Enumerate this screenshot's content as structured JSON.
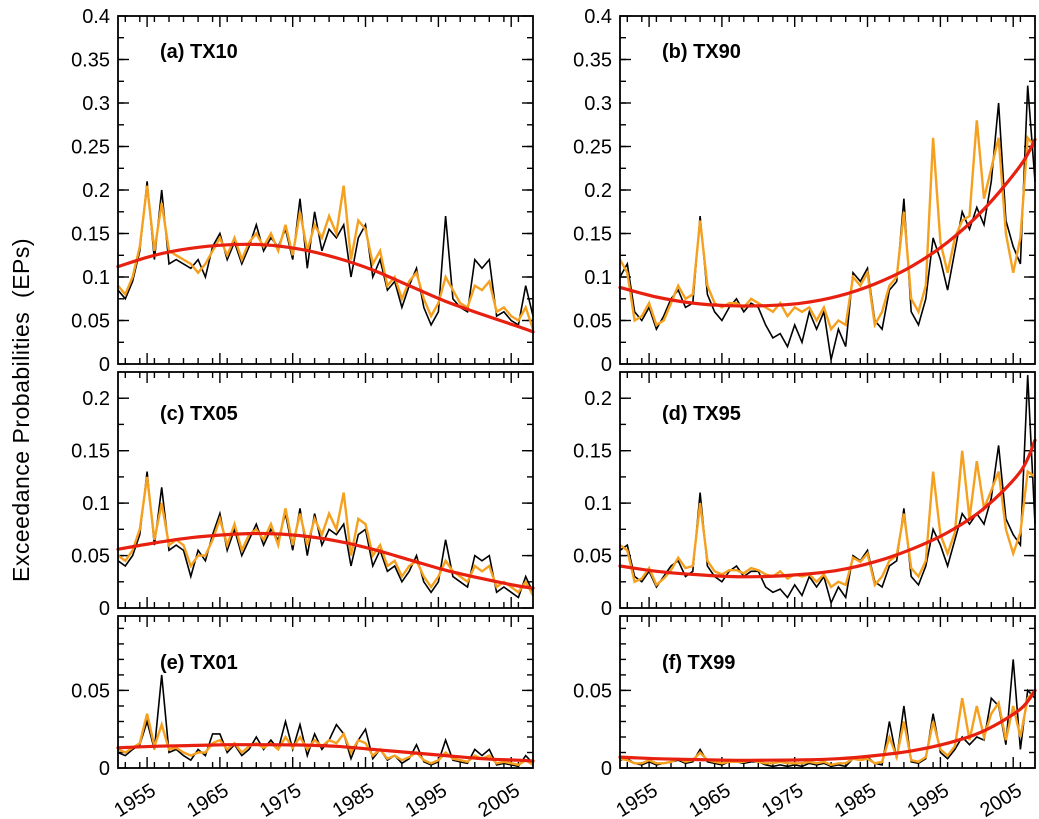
{
  "chart_data": {
    "type": "line",
    "title": "",
    "ylabel": "Exceedance Probabilities  (EPs)",
    "grid": false,
    "legend": "none",
    "x": {
      "start": 1951,
      "end": 2008,
      "minor_step": 2,
      "majors": [
        {
          "value": 1955,
          "label": "1955"
        },
        {
          "value": 1965,
          "label": "1965"
        },
        {
          "value": 1975,
          "label": "1975"
        },
        {
          "value": 1985,
          "label": "1985"
        },
        {
          "value": 1995,
          "label": "1995"
        },
        {
          "value": 2005,
          "label": "2005"
        }
      ]
    },
    "rows": [
      {
        "ylim": [
          0,
          0.4
        ],
        "minor_step": 0.025,
        "ticks": [
          {
            "value": 0,
            "label": "0"
          },
          {
            "value": 0.05,
            "label": "0.05"
          },
          {
            "value": 0.1,
            "label": "0.1"
          },
          {
            "value": 0.15,
            "label": "0.15"
          },
          {
            "value": 0.2,
            "label": "0.2"
          },
          {
            "value": 0.25,
            "label": "0.25"
          },
          {
            "value": 0.3,
            "label": "0.3"
          },
          {
            "value": 0.35,
            "label": "0.35"
          },
          {
            "value": 0.4,
            "label": "0.4"
          }
        ]
      },
      {
        "ylim": [
          0,
          0.225
        ],
        "minor_step": 0.025,
        "ticks": [
          {
            "value": 0,
            "label": "0"
          },
          {
            "value": 0.05,
            "label": "0.05"
          },
          {
            "value": 0.1,
            "label": "0.1"
          },
          {
            "value": 0.15,
            "label": "0.15"
          },
          {
            "value": 0.2,
            "label": "0.2"
          }
        ]
      },
      {
        "ylim": [
          0,
          0.098
        ],
        "minor_step": 0.01,
        "ticks": [
          {
            "value": 0,
            "label": "0"
          },
          {
            "value": 0.05,
            "label": "0.05"
          }
        ]
      }
    ],
    "colors": {
      "black_series": "#000000",
      "orange_series": "#F5A01E",
      "red_trend": "#E8200F",
      "frame": "#000000"
    },
    "trend_years": [
      1951,
      1956,
      1961,
      1966,
      1971,
      1976,
      1981,
      1986,
      1991,
      1996,
      2001,
      2006,
      2008
    ],
    "panels": [
      {
        "id": "a",
        "label": "(a)  TX10",
        "row": 0,
        "col": 0,
        "black": [
          0.085,
          0.075,
          0.095,
          0.13,
          0.21,
          0.12,
          0.2,
          0.115,
          0.12,
          0.115,
          0.11,
          0.12,
          0.1,
          0.135,
          0.15,
          0.12,
          0.14,
          0.115,
          0.135,
          0.16,
          0.13,
          0.145,
          0.135,
          0.155,
          0.12,
          0.19,
          0.11,
          0.175,
          0.13,
          0.155,
          0.145,
          0.16,
          0.1,
          0.145,
          0.16,
          0.1,
          0.12,
          0.085,
          0.095,
          0.065,
          0.09,
          0.11,
          0.065,
          0.045,
          0.06,
          0.17,
          0.075,
          0.065,
          0.06,
          0.12,
          0.11,
          0.12,
          0.055,
          0.06,
          0.05,
          0.045,
          0.09,
          0.055
        ],
        "orange": [
          0.09,
          0.08,
          0.1,
          0.135,
          0.205,
          0.13,
          0.185,
          0.13,
          0.125,
          0.12,
          0.115,
          0.105,
          0.115,
          0.13,
          0.145,
          0.125,
          0.145,
          0.12,
          0.14,
          0.15,
          0.135,
          0.15,
          0.13,
          0.16,
          0.125,
          0.175,
          0.13,
          0.16,
          0.145,
          0.17,
          0.15,
          0.205,
          0.12,
          0.165,
          0.155,
          0.115,
          0.13,
          0.09,
          0.1,
          0.075,
          0.095,
          0.105,
          0.075,
          0.055,
          0.07,
          0.1,
          0.085,
          0.07,
          0.065,
          0.09,
          0.085,
          0.095,
          0.06,
          0.065,
          0.055,
          0.05,
          0.065,
          0.04
        ],
        "trend": [
          0.112,
          0.125,
          0.133,
          0.137,
          0.137,
          0.132,
          0.122,
          0.108,
          0.09,
          0.072,
          0.057,
          0.043,
          0.037
        ]
      },
      {
        "id": "b",
        "label": "(b)  TX90",
        "row": 0,
        "col": 1,
        "black": [
          0.1,
          0.115,
          0.06,
          0.05,
          0.065,
          0.04,
          0.055,
          0.075,
          0.085,
          0.065,
          0.07,
          0.17,
          0.08,
          0.06,
          0.05,
          0.065,
          0.075,
          0.06,
          0.07,
          0.065,
          0.045,
          0.03,
          0.035,
          0.02,
          0.045,
          0.025,
          0.06,
          0.04,
          0.06,
          0.005,
          0.04,
          0.02,
          0.105,
          0.095,
          0.11,
          0.05,
          0.04,
          0.085,
          0.095,
          0.19,
          0.06,
          0.045,
          0.075,
          0.145,
          0.12,
          0.085,
          0.13,
          0.175,
          0.155,
          0.18,
          0.16,
          0.21,
          0.3,
          0.165,
          0.135,
          0.115,
          0.32,
          0.21
        ],
        "orange": [
          0.12,
          0.105,
          0.05,
          0.055,
          0.07,
          0.045,
          0.05,
          0.07,
          0.09,
          0.075,
          0.08,
          0.165,
          0.09,
          0.07,
          0.065,
          0.07,
          0.07,
          0.065,
          0.075,
          0.07,
          0.065,
          0.06,
          0.07,
          0.055,
          0.065,
          0.06,
          0.065,
          0.05,
          0.065,
          0.04,
          0.05,
          0.045,
          0.1,
          0.09,
          0.105,
          0.045,
          0.06,
          0.09,
          0.1,
          0.175,
          0.075,
          0.06,
          0.09,
          0.26,
          0.14,
          0.105,
          0.145,
          0.165,
          0.17,
          0.28,
          0.19,
          0.225,
          0.26,
          0.15,
          0.105,
          0.145,
          0.26,
          0.25
        ],
        "trend": [
          0.088,
          0.077,
          0.07,
          0.067,
          0.067,
          0.07,
          0.078,
          0.092,
          0.112,
          0.14,
          0.178,
          0.228,
          0.258
        ]
      },
      {
        "id": "c",
        "label": "(c)  TX05",
        "row": 1,
        "col": 0,
        "black": [
          0.045,
          0.04,
          0.05,
          0.07,
          0.13,
          0.06,
          0.115,
          0.055,
          0.06,
          0.055,
          0.03,
          0.055,
          0.045,
          0.07,
          0.09,
          0.055,
          0.075,
          0.05,
          0.065,
          0.08,
          0.06,
          0.075,
          0.065,
          0.09,
          0.055,
          0.095,
          0.05,
          0.09,
          0.06,
          0.075,
          0.07,
          0.08,
          0.04,
          0.07,
          0.075,
          0.04,
          0.055,
          0.035,
          0.04,
          0.025,
          0.035,
          0.05,
          0.025,
          0.015,
          0.025,
          0.065,
          0.03,
          0.025,
          0.02,
          0.05,
          0.045,
          0.05,
          0.015,
          0.02,
          0.015,
          0.01,
          0.03,
          0.015
        ],
        "orange": [
          0.05,
          0.045,
          0.055,
          0.075,
          0.125,
          0.065,
          0.1,
          0.06,
          0.065,
          0.06,
          0.04,
          0.05,
          0.05,
          0.065,
          0.085,
          0.06,
          0.08,
          0.055,
          0.07,
          0.075,
          0.065,
          0.08,
          0.06,
          0.095,
          0.06,
          0.09,
          0.06,
          0.085,
          0.07,
          0.09,
          0.075,
          0.11,
          0.05,
          0.085,
          0.08,
          0.05,
          0.06,
          0.04,
          0.045,
          0.03,
          0.04,
          0.045,
          0.03,
          0.02,
          0.03,
          0.045,
          0.035,
          0.03,
          0.025,
          0.04,
          0.035,
          0.04,
          0.02,
          0.025,
          0.02,
          0.015,
          0.025,
          0.012
        ],
        "trend": [
          0.056,
          0.062,
          0.067,
          0.07,
          0.071,
          0.069,
          0.064,
          0.056,
          0.046,
          0.036,
          0.028,
          0.021,
          0.019
        ]
      },
      {
        "id": "d",
        "label": "(d)  TX95",
        "row": 1,
        "col": 1,
        "black": [
          0.055,
          0.06,
          0.03,
          0.025,
          0.035,
          0.02,
          0.03,
          0.04,
          0.045,
          0.03,
          0.035,
          0.11,
          0.04,
          0.03,
          0.025,
          0.035,
          0.04,
          0.03,
          0.035,
          0.035,
          0.02,
          0.015,
          0.018,
          0.01,
          0.022,
          0.012,
          0.03,
          0.02,
          0.03,
          0.005,
          0.02,
          0.01,
          0.05,
          0.045,
          0.055,
          0.025,
          0.02,
          0.04,
          0.045,
          0.095,
          0.03,
          0.022,
          0.04,
          0.075,
          0.06,
          0.04,
          0.065,
          0.09,
          0.08,
          0.09,
          0.08,
          0.105,
          0.155,
          0.085,
          0.07,
          0.06,
          0.222,
          0.08
        ],
        "orange": [
          0.06,
          0.055,
          0.025,
          0.028,
          0.038,
          0.022,
          0.028,
          0.036,
          0.048,
          0.038,
          0.04,
          0.1,
          0.045,
          0.035,
          0.032,
          0.036,
          0.036,
          0.033,
          0.038,
          0.036,
          0.032,
          0.03,
          0.035,
          0.028,
          0.032,
          0.03,
          0.032,
          0.025,
          0.032,
          0.02,
          0.025,
          0.022,
          0.048,
          0.044,
          0.052,
          0.022,
          0.03,
          0.045,
          0.05,
          0.09,
          0.038,
          0.03,
          0.045,
          0.13,
          0.07,
          0.052,
          0.072,
          0.15,
          0.085,
          0.14,
          0.095,
          0.112,
          0.13,
          0.075,
          0.052,
          0.072,
          0.13,
          0.125
        ],
        "trend": [
          0.04,
          0.035,
          0.032,
          0.03,
          0.03,
          0.032,
          0.036,
          0.044,
          0.056,
          0.072,
          0.095,
          0.13,
          0.16
        ]
      },
      {
        "id": "e",
        "label": "(e)  TX01",
        "row": 2,
        "col": 0,
        "black": [
          0.01,
          0.008,
          0.012,
          0.015,
          0.03,
          0.012,
          0.06,
          0.01,
          0.012,
          0.008,
          0.005,
          0.012,
          0.008,
          0.022,
          0.022,
          0.01,
          0.015,
          0.008,
          0.012,
          0.02,
          0.012,
          0.018,
          0.012,
          0.03,
          0.012,
          0.028,
          0.008,
          0.022,
          0.012,
          0.018,
          0.028,
          0.022,
          0.006,
          0.018,
          0.025,
          0.006,
          0.012,
          0.005,
          0.008,
          0.003,
          0.006,
          0.015,
          0.004,
          0.002,
          0.004,
          0.018,
          0.005,
          0.004,
          0.003,
          0.012,
          0.008,
          0.012,
          0.002,
          0.003,
          0.002,
          0.001,
          0.008,
          0.003
        ],
        "orange": [
          0.012,
          0.01,
          0.013,
          0.016,
          0.035,
          0.014,
          0.028,
          0.012,
          0.013,
          0.01,
          0.008,
          0.01,
          0.01,
          0.016,
          0.018,
          0.012,
          0.016,
          0.01,
          0.014,
          0.016,
          0.013,
          0.016,
          0.012,
          0.02,
          0.013,
          0.02,
          0.012,
          0.018,
          0.014,
          0.018,
          0.016,
          0.022,
          0.01,
          0.018,
          0.016,
          0.008,
          0.012,
          0.006,
          0.008,
          0.005,
          0.007,
          0.01,
          0.005,
          0.003,
          0.005,
          0.01,
          0.006,
          0.005,
          0.004,
          0.008,
          0.006,
          0.008,
          0.003,
          0.004,
          0.003,
          0.002,
          0.005,
          0.002
        ],
        "trend": [
          0.013,
          0.014,
          0.0145,
          0.015,
          0.015,
          0.0148,
          0.014,
          0.012,
          0.01,
          0.008,
          0.006,
          0.005,
          0.0045
        ]
      },
      {
        "id": "f",
        "label": "(f)  TX99",
        "row": 2,
        "col": 1,
        "black": [
          0.005,
          0.006,
          0.003,
          0.002,
          0.004,
          0.002,
          0.003,
          0.004,
          0.005,
          0.003,
          0.004,
          0.012,
          0.004,
          0.003,
          0.002,
          0.004,
          0.004,
          0.003,
          0.004,
          0.004,
          0.002,
          0.001,
          0.002,
          0.001,
          0.002,
          0.001,
          0.003,
          0.002,
          0.003,
          0.001,
          0.002,
          0.001,
          0.006,
          0.005,
          0.007,
          0.003,
          0.002,
          0.03,
          0.006,
          0.04,
          0.004,
          0.003,
          0.006,
          0.035,
          0.01,
          0.006,
          0.012,
          0.02,
          0.015,
          0.02,
          0.018,
          0.045,
          0.04,
          0.015,
          0.07,
          0.012,
          0.05,
          0.045
        ],
        "orange": [
          0.006,
          0.005,
          0.003,
          0.003,
          0.005,
          0.003,
          0.003,
          0.004,
          0.006,
          0.004,
          0.005,
          0.01,
          0.005,
          0.004,
          0.003,
          0.004,
          0.004,
          0.004,
          0.005,
          0.004,
          0.003,
          0.003,
          0.004,
          0.003,
          0.003,
          0.003,
          0.004,
          0.003,
          0.004,
          0.002,
          0.003,
          0.003,
          0.006,
          0.005,
          0.006,
          0.003,
          0.004,
          0.02,
          0.007,
          0.03,
          0.005,
          0.004,
          0.007,
          0.03,
          0.012,
          0.008,
          0.014,
          0.045,
          0.018,
          0.04,
          0.02,
          0.035,
          0.042,
          0.018,
          0.04,
          0.02,
          0.045,
          0.05
        ],
        "trend": [
          0.007,
          0.006,
          0.0055,
          0.005,
          0.005,
          0.0052,
          0.006,
          0.008,
          0.011,
          0.016,
          0.024,
          0.038,
          0.05
        ]
      }
    ]
  }
}
